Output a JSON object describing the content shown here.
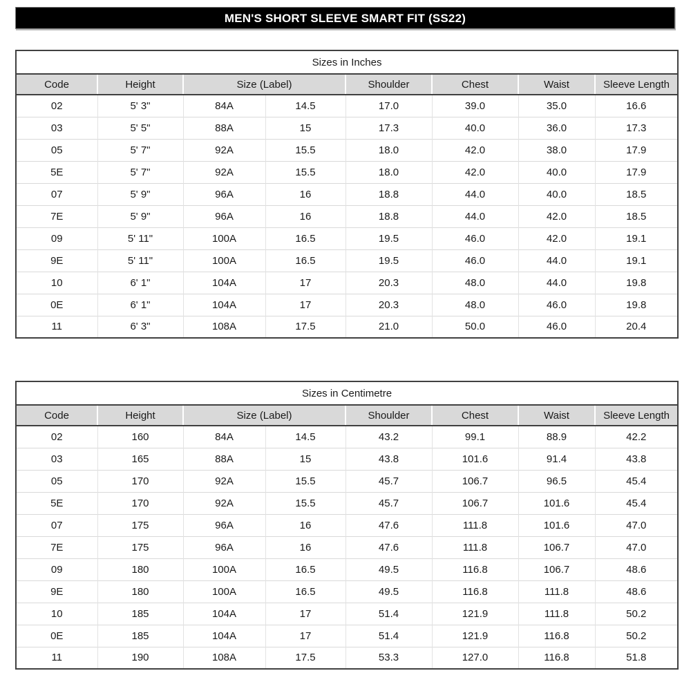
{
  "page_title": "MEN'S SHORT SLEEVE SMART FIT (SS22)",
  "colors": {
    "title_bar_bg": "#000000",
    "title_bar_text": "#ffffff",
    "header_bg": "#d9d9d9",
    "border_dark": "#404040",
    "grid_light": "#d9d9d9"
  },
  "column_headers": [
    "Code",
    "Height",
    "Size (Label)",
    "Shoulder",
    "Chest",
    "Waist",
    "Sleeve Length"
  ],
  "column_header_spans": [
    1,
    1,
    2,
    1,
    1,
    1,
    1
  ],
  "tables": [
    {
      "title": "Sizes in Inches",
      "rows": [
        [
          "02",
          "5' 3\"",
          "84A",
          "14.5",
          "17.0",
          "39.0",
          "35.0",
          "16.6"
        ],
        [
          "03",
          "5' 5\"",
          "88A",
          "15",
          "17.3",
          "40.0",
          "36.0",
          "17.3"
        ],
        [
          "05",
          "5' 7\"",
          "92A",
          "15.5",
          "18.0",
          "42.0",
          "38.0",
          "17.9"
        ],
        [
          "5E",
          "5' 7\"",
          "92A",
          "15.5",
          "18.0",
          "42.0",
          "40.0",
          "17.9"
        ],
        [
          "07",
          "5' 9\"",
          "96A",
          "16",
          "18.8",
          "44.0",
          "40.0",
          "18.5"
        ],
        [
          "7E",
          "5' 9\"",
          "96A",
          "16",
          "18.8",
          "44.0",
          "42.0",
          "18.5"
        ],
        [
          "09",
          "5' 11\"",
          "100A",
          "16.5",
          "19.5",
          "46.0",
          "42.0",
          "19.1"
        ],
        [
          "9E",
          "5' 11\"",
          "100A",
          "16.5",
          "19.5",
          "46.0",
          "44.0",
          "19.1"
        ],
        [
          "10",
          "6' 1\"",
          "104A",
          "17",
          "20.3",
          "48.0",
          "44.0",
          "19.8"
        ],
        [
          "0E",
          "6' 1\"",
          "104A",
          "17",
          "20.3",
          "48.0",
          "46.0",
          "19.8"
        ],
        [
          "11",
          "6' 3\"",
          "108A",
          "17.5",
          "21.0",
          "50.0",
          "46.0",
          "20.4"
        ]
      ]
    },
    {
      "title": "Sizes in Centimetre",
      "rows": [
        [
          "02",
          "160",
          "84A",
          "14.5",
          "43.2",
          "99.1",
          "88.9",
          "42.2"
        ],
        [
          "03",
          "165",
          "88A",
          "15",
          "43.8",
          "101.6",
          "91.4",
          "43.8"
        ],
        [
          "05",
          "170",
          "92A",
          "15.5",
          "45.7",
          "106.7",
          "96.5",
          "45.4"
        ],
        [
          "5E",
          "170",
          "92A",
          "15.5",
          "45.7",
          "106.7",
          "101.6",
          "45.4"
        ],
        [
          "07",
          "175",
          "96A",
          "16",
          "47.6",
          "111.8",
          "101.6",
          "47.0"
        ],
        [
          "7E",
          "175",
          "96A",
          "16",
          "47.6",
          "111.8",
          "106.7",
          "47.0"
        ],
        [
          "09",
          "180",
          "100A",
          "16.5",
          "49.5",
          "116.8",
          "106.7",
          "48.6"
        ],
        [
          "9E",
          "180",
          "100A",
          "16.5",
          "49.5",
          "116.8",
          "111.8",
          "48.6"
        ],
        [
          "10",
          "185",
          "104A",
          "17",
          "51.4",
          "121.9",
          "111.8",
          "50.2"
        ],
        [
          "0E",
          "185",
          "104A",
          "17",
          "51.4",
          "121.9",
          "116.8",
          "50.2"
        ],
        [
          "11",
          "190",
          "108A",
          "17.5",
          "53.3",
          "127.0",
          "116.8",
          "51.8"
        ]
      ]
    }
  ]
}
